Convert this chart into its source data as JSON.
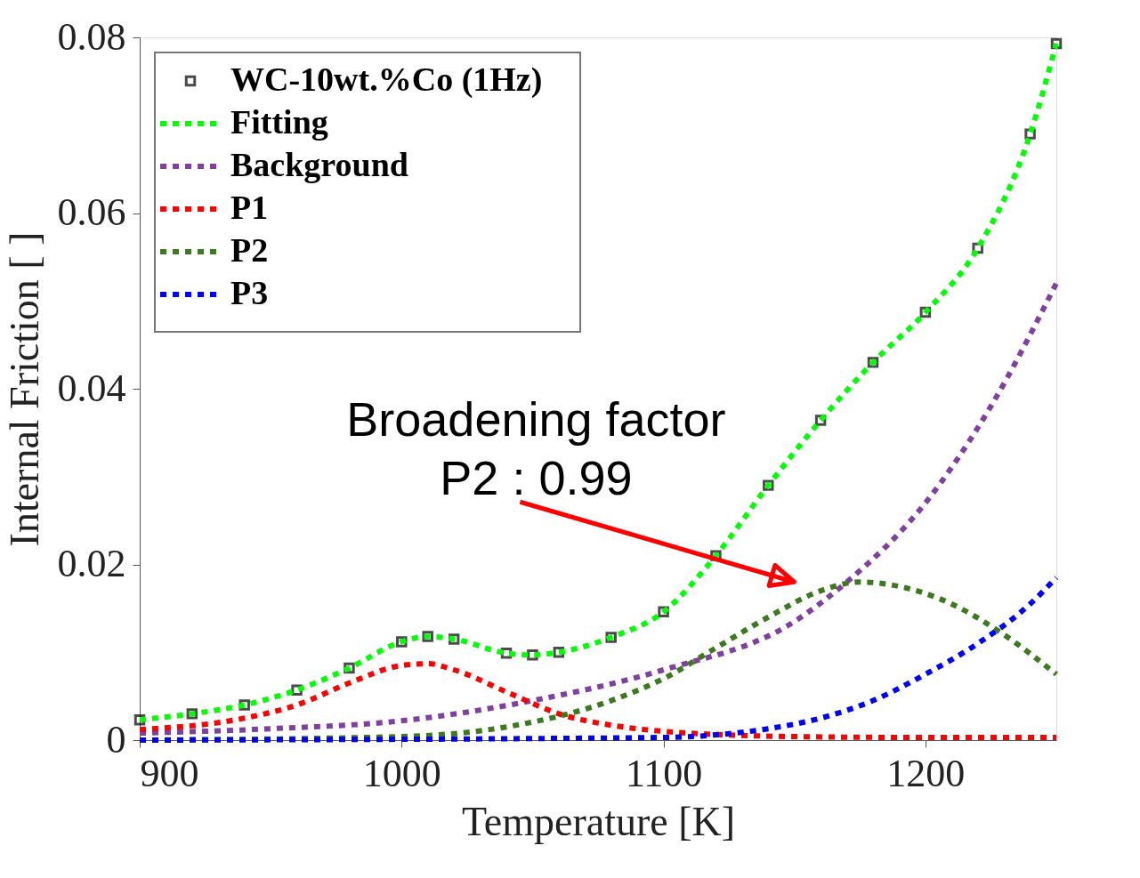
{
  "chart_data": {
    "type": "line",
    "xlabel": "Temperature [K]",
    "ylabel": "Internal Friction [ ]",
    "xlim": [
      900,
      1250
    ],
    "xticks": [
      900,
      1000,
      1100,
      1200
    ],
    "ylim": [
      0,
      0.08
    ],
    "yticks": [
      0,
      0.02,
      0.04,
      0.06,
      0.08
    ],
    "legend": "top left",
    "grid": false,
    "series": [
      {
        "name": "WC-10wt.%Co (1Hz)",
        "type": "scatter",
        "marker": "square",
        "color": "#000000",
        "x": [
          900,
          920,
          940,
          960,
          980,
          1000,
          1010,
          1020,
          1040,
          1050,
          1060,
          1080,
          1100,
          1120,
          1140,
          1160,
          1180,
          1200,
          1220,
          1240,
          1250
        ],
        "values": [
          0.0023,
          0.003,
          0.004,
          0.0057,
          0.0082,
          0.0112,
          0.0118,
          0.0115,
          0.0099,
          0.0097,
          0.01,
          0.0117,
          0.0146,
          0.021,
          0.029,
          0.0364,
          0.043,
          0.0487,
          0.056,
          0.069,
          0.0793
        ]
      },
      {
        "name": "Fitting",
        "line_style": "dotted",
        "color": "#00ff00",
        "x": [
          900,
          920,
          940,
          960,
          980,
          1000,
          1010,
          1020,
          1040,
          1050,
          1060,
          1080,
          1100,
          1120,
          1140,
          1160,
          1180,
          1200,
          1220,
          1240,
          1250
        ],
        "values": [
          0.0023,
          0.003,
          0.004,
          0.0057,
          0.0082,
          0.0112,
          0.0118,
          0.0115,
          0.0099,
          0.0097,
          0.01,
          0.0117,
          0.0146,
          0.021,
          0.029,
          0.0364,
          0.043,
          0.0487,
          0.056,
          0.069,
          0.0793
        ]
      },
      {
        "name": "Background",
        "line_style": "dotted",
        "color": "#8040a0",
        "x": [
          900,
          950,
          1000,
          1050,
          1100,
          1150,
          1170,
          1200,
          1225,
          1250
        ],
        "values": [
          0.0008,
          0.0013,
          0.0022,
          0.0045,
          0.008,
          0.0135,
          0.018,
          0.027,
          0.038,
          0.052
        ]
      },
      {
        "name": "P1",
        "line_style": "dotted",
        "color": "#ff0000",
        "x": [
          900,
          940,
          960,
          980,
          1000,
          1010,
          1020,
          1040,
          1060,
          1080,
          1100,
          1150,
          1200,
          1250
        ],
        "values": [
          0.0012,
          0.0025,
          0.004,
          0.0065,
          0.0085,
          0.0087,
          0.008,
          0.0055,
          0.003,
          0.0017,
          0.001,
          0.0004,
          0.0003,
          0.0003
        ]
      },
      {
        "name": "P2",
        "line_style": "dotted",
        "color": "#3d7a1f",
        "x": [
          900,
          1000,
          1040,
          1080,
          1100,
          1120,
          1140,
          1160,
          1175,
          1190,
          1210,
          1230,
          1250
        ],
        "values": [
          0,
          0.0004,
          0.0015,
          0.0045,
          0.007,
          0.0105,
          0.014,
          0.017,
          0.018,
          0.0175,
          0.0155,
          0.012,
          0.0075
        ]
      },
      {
        "name": "P3",
        "line_style": "dotted",
        "color": "#0000ff",
        "x": [
          900,
          1100,
          1120,
          1140,
          1160,
          1180,
          1200,
          1220,
          1240,
          1250
        ],
        "values": [
          0,
          0.0003,
          0.0006,
          0.0013,
          0.0025,
          0.0045,
          0.0075,
          0.011,
          0.0155,
          0.0185
        ]
      }
    ],
    "annotations": [
      "Broadening factor\nP2 : 0.99"
    ]
  }
}
